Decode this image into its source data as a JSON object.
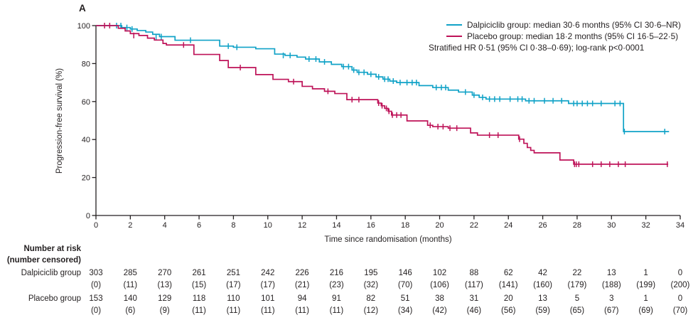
{
  "figure": {
    "panel_label": "A",
    "colors": {
      "dalpiciclib": "#10a2c7",
      "placebo": "#be1258",
      "axis": "#231f20",
      "text": "#231f20"
    }
  },
  "chart_data": {
    "type": "line",
    "subtype": "kaplan-meier-step",
    "title": "",
    "xlabel": "Time since randomisation (months)",
    "ylabel": "Progression-free survival (%)",
    "xlim": [
      0,
      34
    ],
    "ylim": [
      0,
      100
    ],
    "xticks": [
      0,
      2,
      4,
      6,
      8,
      10,
      12,
      14,
      16,
      18,
      20,
      22,
      24,
      26,
      28,
      30,
      32,
      34
    ],
    "yticks": [
      0,
      20,
      40,
      60,
      80,
      100
    ],
    "grid": false,
    "legend_position": "top-right",
    "annotation": "Stratified HR 0·51 (95% CI 0·38–0·69); log-rank p<0·0001",
    "series": [
      {
        "id": "dalpiciclib-group",
        "name": "Dalpiciclib group",
        "label": "Dalpiciclib group: median 30·6 months (95% CI 30·6–NR)",
        "median_months": "30·6",
        "ci": "30·6–NR",
        "color": "#10a2c7",
        "end": 33.35,
        "steps": [
          [
            0,
            100
          ],
          [
            1.5,
            99.0
          ],
          [
            2.0,
            98.2
          ],
          [
            2.4,
            97.4
          ],
          [
            2.9,
            96.6
          ],
          [
            3.3,
            95.4
          ],
          [
            3.7,
            94.2
          ],
          [
            4.6,
            92.3
          ],
          [
            7.2,
            89.2
          ],
          [
            8.0,
            88.6
          ],
          [
            9.3,
            87.8
          ],
          [
            10.4,
            85.0
          ],
          [
            11.0,
            84.3
          ],
          [
            11.7,
            83.4
          ],
          [
            12.2,
            82.4
          ],
          [
            13.0,
            80.9
          ],
          [
            13.7,
            79.6
          ],
          [
            14.3,
            78.4
          ],
          [
            14.9,
            76.6
          ],
          [
            15.2,
            75.4
          ],
          [
            15.8,
            74.4
          ],
          [
            16.3,
            73.0
          ],
          [
            16.7,
            71.8
          ],
          [
            17.1,
            70.8
          ],
          [
            17.5,
            70.0
          ],
          [
            18.8,
            68.4
          ],
          [
            19.6,
            67.4
          ],
          [
            20.5,
            66.0
          ],
          [
            21.1,
            65.0
          ],
          [
            21.9,
            63.4
          ],
          [
            22.3,
            62.2
          ],
          [
            22.7,
            61.3
          ],
          [
            25.0,
            60.4
          ],
          [
            27.5,
            59.0
          ],
          [
            30.7,
            44.2
          ]
        ],
        "censors": [
          [
            1.2,
            100
          ],
          [
            1.45,
            100
          ],
          [
            1.8,
            99.0
          ],
          [
            2.1,
            98.2
          ],
          [
            3.5,
            94.2
          ],
          [
            3.8,
            94.2
          ],
          [
            5.5,
            92.3
          ],
          [
            7.7,
            89.2
          ],
          [
            8.2,
            88.6
          ],
          [
            10.9,
            84.3
          ],
          [
            11.3,
            84.3
          ],
          [
            12.4,
            82.4
          ],
          [
            12.8,
            82.4
          ],
          [
            13.3,
            80.9
          ],
          [
            14.4,
            78.4
          ],
          [
            14.7,
            78.4
          ],
          [
            15.0,
            76.6
          ],
          [
            15.3,
            75.4
          ],
          [
            15.6,
            75.4
          ],
          [
            16.0,
            74.4
          ],
          [
            16.45,
            73.0
          ],
          [
            16.8,
            71.8
          ],
          [
            17.0,
            71.8
          ],
          [
            17.3,
            70.8
          ],
          [
            17.7,
            70.0
          ],
          [
            18.1,
            70.0
          ],
          [
            18.4,
            70.0
          ],
          [
            18.65,
            70.0
          ],
          [
            19.8,
            67.4
          ],
          [
            20.1,
            67.4
          ],
          [
            20.35,
            67.4
          ],
          [
            21.5,
            65.0
          ],
          [
            22.0,
            63.4
          ],
          [
            22.5,
            62.2
          ],
          [
            22.9,
            61.3
          ],
          [
            23.2,
            61.3
          ],
          [
            23.5,
            61.3
          ],
          [
            24.1,
            61.3
          ],
          [
            24.55,
            61.3
          ],
          [
            24.8,
            61.3
          ],
          [
            25.2,
            60.4
          ],
          [
            25.5,
            60.4
          ],
          [
            26.1,
            60.4
          ],
          [
            26.6,
            60.4
          ],
          [
            27.1,
            60.4
          ],
          [
            27.8,
            59.0
          ],
          [
            28.0,
            59.0
          ],
          [
            28.3,
            59.0
          ],
          [
            28.6,
            59.0
          ],
          [
            28.9,
            59.0
          ],
          [
            29.4,
            59.0
          ],
          [
            30.2,
            59.0
          ],
          [
            30.5,
            59.0
          ],
          [
            30.75,
            44.2
          ],
          [
            33.1,
            44.2
          ]
        ]
      },
      {
        "id": "placebo-group",
        "name": "Placebo group",
        "label": "Placebo group: median 18·2 months (95% CI 16·5–22·5)",
        "median_months": "18·2",
        "ci": "16·5–22·5",
        "color": "#be1258",
        "end": 33.3,
        "steps": [
          [
            0,
            100
          ],
          [
            1.3,
            98.6
          ],
          [
            1.7,
            97.2
          ],
          [
            2.0,
            95.8
          ],
          [
            2.5,
            94.8
          ],
          [
            3.0,
            93.4
          ],
          [
            3.4,
            92.4
          ],
          [
            3.9,
            90.6
          ],
          [
            4.1,
            89.8
          ],
          [
            5.7,
            84.8
          ],
          [
            7.2,
            81.6
          ],
          [
            7.7,
            77.9
          ],
          [
            9.3,
            74.2
          ],
          [
            10.3,
            71.7
          ],
          [
            11.2,
            70.5
          ],
          [
            12.0,
            68.0
          ],
          [
            12.6,
            66.7
          ],
          [
            13.3,
            65.4
          ],
          [
            13.9,
            64.2
          ],
          [
            14.6,
            61.0
          ],
          [
            16.4,
            59.2
          ],
          [
            16.6,
            57.8
          ],
          [
            16.8,
            56.4
          ],
          [
            17.0,
            54.9
          ],
          [
            17.2,
            52.9
          ],
          [
            18.1,
            49.8
          ],
          [
            19.3,
            47.5
          ],
          [
            19.6,
            46.8
          ],
          [
            20.5,
            46.0
          ],
          [
            21.8,
            43.5
          ],
          [
            22.2,
            42.3
          ],
          [
            24.6,
            40.2
          ],
          [
            24.9,
            38.0
          ],
          [
            25.1,
            35.8
          ],
          [
            25.3,
            34.3
          ],
          [
            25.5,
            33.0
          ],
          [
            27.0,
            29.2
          ],
          [
            27.8,
            27.0
          ]
        ],
        "censors": [
          [
            0.5,
            100
          ],
          [
            0.8,
            100
          ],
          [
            2.2,
            94.8
          ],
          [
            5.1,
            89.8
          ],
          [
            8.4,
            77.9
          ],
          [
            11.5,
            70.5
          ],
          [
            13.5,
            65.4
          ],
          [
            14.9,
            61.0
          ],
          [
            15.3,
            61.0
          ],
          [
            16.45,
            59.2
          ],
          [
            16.65,
            57.8
          ],
          [
            16.9,
            56.4
          ],
          [
            17.05,
            54.9
          ],
          [
            17.25,
            52.9
          ],
          [
            17.5,
            52.9
          ],
          [
            17.75,
            52.9
          ],
          [
            19.45,
            47.5
          ],
          [
            19.9,
            46.8
          ],
          [
            20.2,
            46.8
          ],
          [
            20.6,
            46.0
          ],
          [
            21.0,
            46.0
          ],
          [
            22.9,
            42.3
          ],
          [
            23.4,
            42.3
          ],
          [
            24.65,
            40.2
          ],
          [
            27.85,
            27.0
          ],
          [
            27.95,
            27.0
          ],
          [
            28.1,
            27.0
          ],
          [
            28.9,
            27.0
          ],
          [
            29.4,
            27.0
          ],
          [
            29.9,
            27.0
          ],
          [
            30.4,
            27.0
          ],
          [
            30.8,
            27.0
          ],
          [
            33.25,
            27.0
          ]
        ]
      }
    ]
  },
  "risk_table": {
    "header_line1": "Number at risk",
    "header_line2": "(number censored)",
    "rows": [
      {
        "label": "Dalpiciclib group",
        "at_risk": [
          303,
          285,
          270,
          261,
          251,
          242,
          226,
          216,
          195,
          146,
          102,
          88,
          62,
          42,
          22,
          13,
          1,
          0
        ],
        "censored": [
          0,
          11,
          13,
          15,
          17,
          17,
          21,
          23,
          32,
          70,
          106,
          117,
          141,
          160,
          179,
          188,
          199,
          200
        ]
      },
      {
        "label": "Placebo group",
        "at_risk": [
          153,
          140,
          129,
          118,
          110,
          101,
          94,
          91,
          82,
          51,
          38,
          31,
          20,
          13,
          5,
          3,
          1,
          0
        ],
        "censored": [
          0,
          6,
          9,
          11,
          11,
          11,
          11,
          11,
          12,
          34,
          42,
          46,
          56,
          59,
          65,
          67,
          69,
          70
        ]
      }
    ]
  }
}
